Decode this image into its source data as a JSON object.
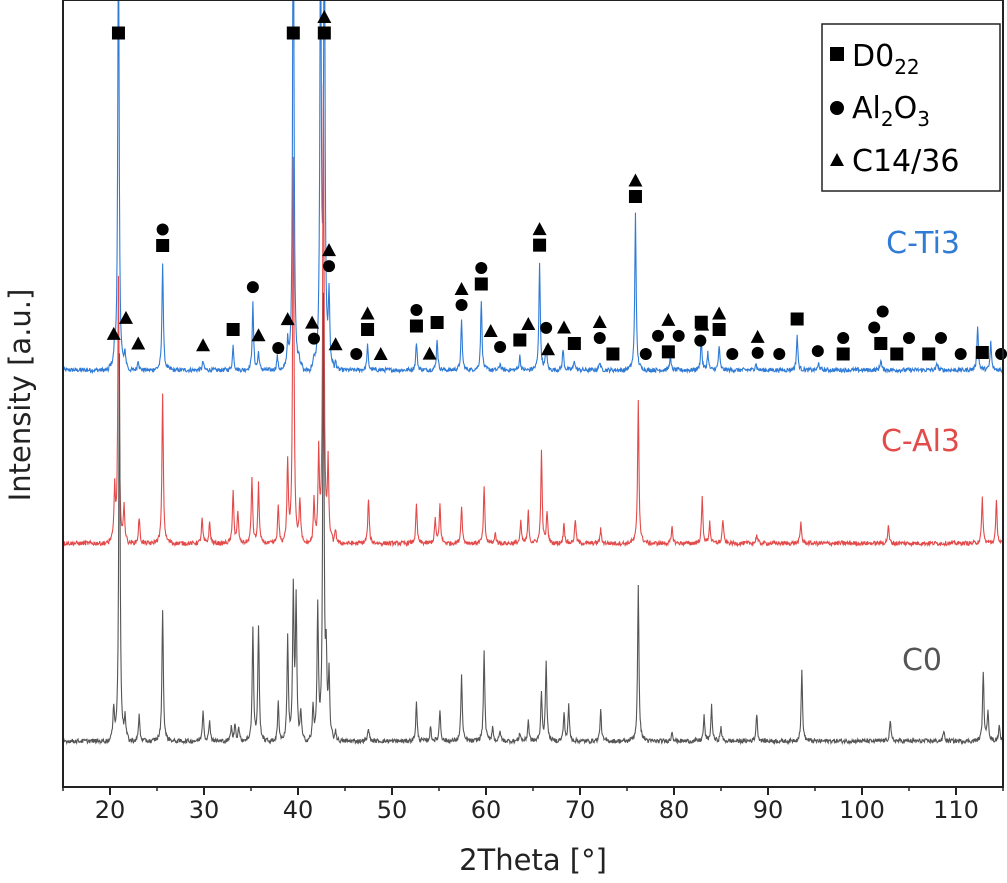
{
  "chart_data": {
    "type": "line",
    "xlabel": "2Theta [°]",
    "ylabel": "Intensity [a.u.]",
    "xlim": [
      15,
      115
    ],
    "x_ticks": [
      20,
      30,
      40,
      50,
      60,
      70,
      80,
      90,
      100,
      110
    ],
    "series": [
      {
        "name": "C-Ti3",
        "color": "#2f7bd6",
        "baseline": 2.12,
        "peaks": [
          [
            20.5,
            0.1
          ],
          [
            20.9,
            2.6
          ],
          [
            21.6,
            0.08
          ],
          [
            23.0,
            0.06
          ],
          [
            25.6,
            0.62
          ],
          [
            29.9,
            0.05
          ],
          [
            33.1,
            0.14
          ],
          [
            35.2,
            0.38
          ],
          [
            35.8,
            0.1
          ],
          [
            37.8,
            0.08
          ],
          [
            38.9,
            0.14
          ],
          [
            39.5,
            3.0
          ],
          [
            40.1,
            0.05
          ],
          [
            41.7,
            0.05
          ],
          [
            42.4,
            2.6
          ],
          [
            42.8,
            2.8
          ],
          [
            43.3,
            0.4
          ],
          [
            44.0,
            0.05
          ],
          [
            47.4,
            0.14
          ],
          [
            52.6,
            0.16
          ],
          [
            54.8,
            0.18
          ],
          [
            57.4,
            0.28
          ],
          [
            59.5,
            0.4
          ],
          [
            61.5,
            0.04
          ],
          [
            63.6,
            0.08
          ],
          [
            65.7,
            0.62
          ],
          [
            66.4,
            0.14
          ],
          [
            68.2,
            0.12
          ],
          [
            69.4,
            0.06
          ],
          [
            72.1,
            0.05
          ],
          [
            75.9,
            0.9
          ],
          [
            79.6,
            0.08
          ],
          [
            82.9,
            0.18
          ],
          [
            83.6,
            0.1
          ],
          [
            84.8,
            0.14
          ],
          [
            88.7,
            0.04
          ],
          [
            93.1,
            0.2
          ],
          [
            95.4,
            0.04
          ],
          [
            102.0,
            0.06
          ],
          [
            108.0,
            0.04
          ],
          [
            112.3,
            0.26
          ],
          [
            113.7,
            0.16
          ]
        ]
      },
      {
        "name": "C-Al3",
        "color": "#e34a4a",
        "baseline": 1.13,
        "peaks": [
          [
            20.5,
            0.3
          ],
          [
            20.9,
            1.5
          ],
          [
            21.5,
            0.2
          ],
          [
            23.1,
            0.15
          ],
          [
            25.6,
            0.86
          ],
          [
            29.8,
            0.14
          ],
          [
            30.6,
            0.12
          ],
          [
            33.1,
            0.31
          ],
          [
            33.6,
            0.18
          ],
          [
            35.1,
            0.38
          ],
          [
            35.8,
            0.34
          ],
          [
            37.9,
            0.22
          ],
          [
            38.9,
            0.46
          ],
          [
            39.5,
            2.2
          ],
          [
            40.2,
            0.24
          ],
          [
            41.7,
            0.24
          ],
          [
            42.2,
            0.5
          ],
          [
            42.7,
            2.6
          ],
          [
            43.2,
            0.44
          ],
          [
            44.0,
            0.08
          ],
          [
            47.5,
            0.26
          ],
          [
            52.6,
            0.22
          ],
          [
            54.6,
            0.14
          ],
          [
            55.1,
            0.22
          ],
          [
            57.4,
            0.22
          ],
          [
            59.8,
            0.32
          ],
          [
            61.0,
            0.06
          ],
          [
            63.7,
            0.12
          ],
          [
            64.5,
            0.18
          ],
          [
            65.9,
            0.52
          ],
          [
            66.5,
            0.18
          ],
          [
            68.3,
            0.12
          ],
          [
            69.5,
            0.14
          ],
          [
            72.2,
            0.08
          ],
          [
            76.2,
            0.82
          ],
          [
            79.8,
            0.09
          ],
          [
            83.0,
            0.26
          ],
          [
            83.8,
            0.12
          ],
          [
            85.2,
            0.14
          ],
          [
            88.8,
            0.05
          ],
          [
            93.5,
            0.12
          ],
          [
            102.8,
            0.1
          ],
          [
            112.8,
            0.26
          ],
          [
            114.3,
            0.24
          ]
        ]
      },
      {
        "name": "C0",
        "color": "#555555",
        "baseline": 0.0,
        "peaks": [
          [
            20.4,
            0.18
          ],
          [
            21.0,
            2.2
          ],
          [
            21.6,
            0.12
          ],
          [
            23.1,
            0.15
          ],
          [
            25.6,
            0.76
          ],
          [
            29.9,
            0.18
          ],
          [
            30.6,
            0.12
          ],
          [
            32.9,
            0.08
          ],
          [
            33.3,
            0.1
          ],
          [
            33.7,
            0.08
          ],
          [
            35.2,
            0.64
          ],
          [
            35.8,
            0.66
          ],
          [
            37.9,
            0.22
          ],
          [
            38.9,
            0.58
          ],
          [
            39.5,
            0.86
          ],
          [
            39.8,
            0.8
          ],
          [
            40.3,
            0.16
          ],
          [
            41.6,
            0.2
          ],
          [
            42.1,
            0.76
          ],
          [
            42.7,
            2.5
          ],
          [
            43.0,
            0.42
          ],
          [
            43.3,
            0.36
          ],
          [
            44.0,
            0.06
          ],
          [
            47.5,
            0.08
          ],
          [
            52.6,
            0.22
          ],
          [
            54.1,
            0.08
          ],
          [
            55.1,
            0.18
          ],
          [
            57.4,
            0.38
          ],
          [
            59.8,
            0.52
          ],
          [
            60.7,
            0.08
          ],
          [
            61.5,
            0.06
          ],
          [
            63.6,
            0.05
          ],
          [
            64.5,
            0.12
          ],
          [
            65.9,
            0.28
          ],
          [
            66.4,
            0.46
          ],
          [
            68.3,
            0.16
          ],
          [
            68.8,
            0.2
          ],
          [
            72.2,
            0.18
          ],
          [
            76.2,
            0.88
          ],
          [
            79.8,
            0.06
          ],
          [
            83.2,
            0.14
          ],
          [
            84.0,
            0.2
          ],
          [
            85.0,
            0.08
          ],
          [
            88.8,
            0.16
          ],
          [
            93.6,
            0.4
          ],
          [
            103.0,
            0.12
          ],
          [
            108.7,
            0.06
          ],
          [
            112.9,
            0.4
          ],
          [
            113.4,
            0.18
          ],
          [
            114.6,
            0.1
          ]
        ]
      }
    ],
    "series_labels": [
      "C-Ti3",
      "C-Al3",
      "C0"
    ],
    "legend": {
      "position": "top-right",
      "entries": [
        {
          "marker": "square",
          "label": "D0",
          "subscript": "22"
        },
        {
          "marker": "circle",
          "label_parts": [
            "Al",
            "2",
            "O",
            "3"
          ]
        },
        {
          "marker": "triangle",
          "label": "C14/36"
        }
      ]
    },
    "phase_markers": {
      "square": [
        20.9,
        33.1,
        39.5,
        42.8,
        25.6,
        47.4,
        52.6,
        54.8,
        59.5,
        63.6,
        65.7,
        69.4,
        73.5,
        75.9,
        79.4,
        82.9,
        84.8,
        93.1,
        98.0,
        102.0,
        103.7,
        107.1,
        112.8
      ],
      "circle": [
        25.6,
        35.2,
        37.9,
        41.7,
        43.3,
        46.2,
        52.6,
        57.4,
        59.5,
        61.5,
        66.4,
        72.1,
        77.0,
        78.3,
        80.5,
        82.8,
        86.2,
        88.9,
        91.2,
        95.3,
        98.0,
        101.3,
        102.2,
        105.0,
        108.4,
        110.5,
        114.8
      ],
      "triangle": [
        20.4,
        21.7,
        23.0,
        29.9,
        35.8,
        38.9,
        42.8,
        41.5,
        43.3,
        44.0,
        47.4,
        48.8,
        54.0,
        57.4,
        60.5,
        64.5,
        65.7,
        66.6,
        68.3,
        72.1,
        75.9,
        79.4,
        83.0,
        84.8,
        88.9
      ]
    },
    "title": ""
  }
}
